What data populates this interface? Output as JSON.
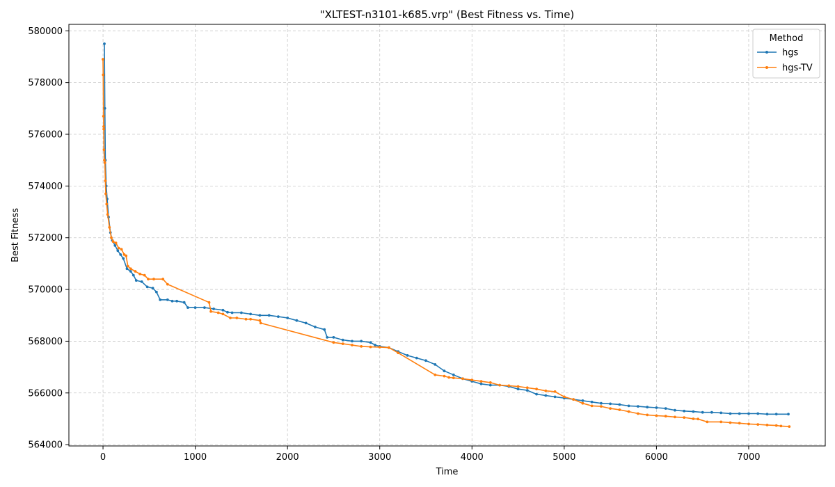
{
  "chart_data": {
    "type": "line",
    "title": "\"XLTEST-n3101-k685.vrp\" (Best Fitness vs. Time)",
    "xlabel": "Time",
    "ylabel": "Best Fitness",
    "xlim": [
      -370,
      7830
    ],
    "ylim": [
      563950,
      580250
    ],
    "xticks": [
      0,
      1000,
      2000,
      3000,
      4000,
      5000,
      6000,
      7000
    ],
    "yticks": [
      564000,
      566000,
      568000,
      570000,
      572000,
      574000,
      576000,
      578000,
      580000
    ],
    "grid": true,
    "legend": {
      "title": "Method",
      "position": "top-right"
    },
    "series": [
      {
        "name": "hgs",
        "color": "#1f77b4",
        "points": [
          [
            15,
            579500
          ],
          [
            20,
            577000
          ],
          [
            25,
            575000
          ],
          [
            35,
            574000
          ],
          [
            45,
            573500
          ],
          [
            60,
            572800
          ],
          [
            80,
            572200
          ],
          [
            100,
            571900
          ],
          [
            130,
            571700
          ],
          [
            160,
            571500
          ],
          [
            190,
            571350
          ],
          [
            220,
            571200
          ],
          [
            260,
            570800
          ],
          [
            300,
            570700
          ],
          [
            330,
            570550
          ],
          [
            360,
            570350
          ],
          [
            420,
            570300
          ],
          [
            480,
            570100
          ],
          [
            540,
            570050
          ],
          [
            580,
            569900
          ],
          [
            620,
            569600
          ],
          [
            700,
            569600
          ],
          [
            750,
            569550
          ],
          [
            800,
            569550
          ],
          [
            880,
            569500
          ],
          [
            920,
            569300
          ],
          [
            1000,
            569300
          ],
          [
            1100,
            569300
          ],
          [
            1200,
            569250
          ],
          [
            1300,
            569200
          ],
          [
            1350,
            569120
          ],
          [
            1400,
            569100
          ],
          [
            1500,
            569100
          ],
          [
            1600,
            569050
          ],
          [
            1700,
            569000
          ],
          [
            1800,
            569000
          ],
          [
            1900,
            568950
          ],
          [
            2000,
            568900
          ],
          [
            2100,
            568800
          ],
          [
            2200,
            568700
          ],
          [
            2300,
            568550
          ],
          [
            2400,
            568450
          ],
          [
            2430,
            568150
          ],
          [
            2500,
            568150
          ],
          [
            2600,
            568050
          ],
          [
            2700,
            568000
          ],
          [
            2800,
            568000
          ],
          [
            2900,
            567950
          ],
          [
            2950,
            567850
          ],
          [
            3000,
            567800
          ],
          [
            3100,
            567750
          ],
          [
            3200,
            567600
          ],
          [
            3300,
            567450
          ],
          [
            3400,
            567350
          ],
          [
            3500,
            567250
          ],
          [
            3600,
            567100
          ],
          [
            3700,
            566850
          ],
          [
            3800,
            566700
          ],
          [
            3900,
            566550
          ],
          [
            4000,
            566450
          ],
          [
            4100,
            566350
          ],
          [
            4200,
            566300
          ],
          [
            4300,
            566300
          ],
          [
            4400,
            566250
          ],
          [
            4500,
            566150
          ],
          [
            4600,
            566100
          ],
          [
            4700,
            565950
          ],
          [
            4800,
            565900
          ],
          [
            4900,
            565850
          ],
          [
            5000,
            565800
          ],
          [
            5100,
            565750
          ],
          [
            5200,
            565700
          ],
          [
            5300,
            565650
          ],
          [
            5400,
            565600
          ],
          [
            5500,
            565580
          ],
          [
            5600,
            565550
          ],
          [
            5700,
            565500
          ],
          [
            5800,
            565480
          ],
          [
            5900,
            565450
          ],
          [
            6000,
            565430
          ],
          [
            6100,
            565400
          ],
          [
            6200,
            565330
          ],
          [
            6300,
            565300
          ],
          [
            6400,
            565280
          ],
          [
            6500,
            565250
          ],
          [
            6600,
            565250
          ],
          [
            6700,
            565230
          ],
          [
            6800,
            565200
          ],
          [
            6900,
            565200
          ],
          [
            7000,
            565200
          ],
          [
            7100,
            565200
          ],
          [
            7200,
            565180
          ],
          [
            7300,
            565180
          ],
          [
            7430,
            565180
          ]
        ]
      },
      {
        "name": "hgs-TV",
        "color": "#ff7f0e",
        "points": [
          [
            0,
            578900
          ],
          [
            2,
            578300
          ],
          [
            5,
            576700
          ],
          [
            7,
            576300
          ],
          [
            8,
            576200
          ],
          [
            10,
            575400
          ],
          [
            15,
            575000
          ],
          [
            20,
            574900
          ],
          [
            25,
            574200
          ],
          [
            30,
            573700
          ],
          [
            40,
            573300
          ],
          [
            50,
            572900
          ],
          [
            70,
            572400
          ],
          [
            90,
            572000
          ],
          [
            110,
            571850
          ],
          [
            140,
            571800
          ],
          [
            170,
            571600
          ],
          [
            200,
            571550
          ],
          [
            230,
            571350
          ],
          [
            250,
            571300
          ],
          [
            270,
            570900
          ],
          [
            300,
            570800
          ],
          [
            350,
            570700
          ],
          [
            400,
            570600
          ],
          [
            450,
            570550
          ],
          [
            490,
            570400
          ],
          [
            550,
            570400
          ],
          [
            650,
            570400
          ],
          [
            700,
            570200
          ],
          [
            1150,
            569500
          ],
          [
            1170,
            569150
          ],
          [
            1250,
            569100
          ],
          [
            1300,
            569050
          ],
          [
            1380,
            568900
          ],
          [
            1450,
            568900
          ],
          [
            1550,
            568850
          ],
          [
            1600,
            568850
          ],
          [
            1700,
            568800
          ],
          [
            1710,
            568700
          ],
          [
            2500,
            567950
          ],
          [
            2600,
            567900
          ],
          [
            2700,
            567850
          ],
          [
            2800,
            567800
          ],
          [
            2900,
            567780
          ],
          [
            3000,
            567770
          ],
          [
            3100,
            567750
          ],
          [
            3200,
            567550
          ],
          [
            3600,
            566700
          ],
          [
            3700,
            566650
          ],
          [
            3750,
            566600
          ],
          [
            3800,
            566580
          ],
          [
            3900,
            566550
          ],
          [
            4000,
            566500
          ],
          [
            4100,
            566450
          ],
          [
            4200,
            566400
          ],
          [
            4300,
            566300
          ],
          [
            4400,
            566280
          ],
          [
            4500,
            566250
          ],
          [
            4600,
            566200
          ],
          [
            4700,
            566150
          ],
          [
            4800,
            566080
          ],
          [
            4900,
            566050
          ],
          [
            5000,
            565850
          ],
          [
            5100,
            565750
          ],
          [
            5200,
            565600
          ],
          [
            5300,
            565500
          ],
          [
            5400,
            565480
          ],
          [
            5500,
            565400
          ],
          [
            5600,
            565350
          ],
          [
            5700,
            565280
          ],
          [
            5800,
            565200
          ],
          [
            5900,
            565150
          ],
          [
            6000,
            565120
          ],
          [
            6100,
            565100
          ],
          [
            6200,
            565070
          ],
          [
            6300,
            565050
          ],
          [
            6400,
            565000
          ],
          [
            6450,
            564990
          ],
          [
            6550,
            564880
          ],
          [
            6700,
            564880
          ],
          [
            6800,
            564850
          ],
          [
            6900,
            564830
          ],
          [
            7000,
            564800
          ],
          [
            7100,
            564780
          ],
          [
            7200,
            564760
          ],
          [
            7300,
            564740
          ],
          [
            7350,
            564720
          ],
          [
            7440,
            564700
          ]
        ]
      }
    ]
  }
}
